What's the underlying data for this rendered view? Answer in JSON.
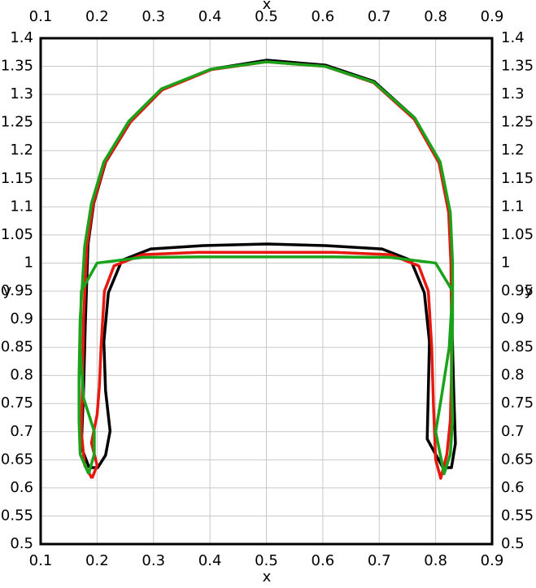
{
  "chart_data": {
    "type": "line",
    "xlabel": "x",
    "ylabel": "y",
    "xlim": [
      0.1,
      0.9
    ],
    "ylim": [
      0.5,
      1.4
    ],
    "xticks": [
      0.1,
      0.2,
      0.3,
      0.4,
      0.5,
      0.6,
      0.7,
      0.8,
      0.9
    ],
    "yticks": [
      0.5,
      0.55,
      0.6,
      0.65,
      0.7,
      0.75,
      0.8,
      0.85,
      0.9,
      0.95,
      1,
      1.05,
      1.1,
      1.15,
      1.2,
      1.25,
      1.3,
      1.35,
      1.4
    ],
    "grid": true,
    "series": [
      {
        "color": "#000000",
        "x": [
          0.186,
          0.172,
          0.176,
          0.179,
          0.184,
          0.194,
          0.215,
          0.259,
          0.316,
          0.403,
          0.501,
          0.605,
          0.691,
          0.763,
          0.806,
          0.825,
          0.829,
          0.829,
          0.832,
          0.835,
          0.828,
          0.813,
          0.785,
          0.787,
          0.789,
          0.78,
          0.756,
          0.705,
          0.605,
          0.501,
          0.388,
          0.295,
          0.244,
          0.22,
          0.212,
          0.215,
          0.223,
          0.215,
          0.201,
          0.186
        ],
        "values": [
          0.636,
          0.672,
          0.773,
          0.889,
          1.034,
          1.106,
          1.179,
          1.251,
          1.309,
          1.345,
          1.361,
          1.352,
          1.323,
          1.258,
          1.179,
          1.092,
          1.005,
          0.889,
          0.773,
          0.679,
          0.636,
          0.636,
          0.687,
          0.773,
          0.86,
          0.947,
          1.005,
          1.025,
          1.031,
          1.034,
          1.031,
          1.025,
          1.005,
          0.947,
          0.86,
          0.773,
          0.701,
          0.658,
          0.636,
          0.636
        ]
      },
      {
        "color": "#e8170f",
        "x": [
          0.191,
          0.178,
          0.172,
          0.174,
          0.176,
          0.182,
          0.193,
          0.214,
          0.258,
          0.315,
          0.402,
          0.5,
          0.604,
          0.69,
          0.762,
          0.806,
          0.823,
          0.827,
          0.828,
          0.828,
          0.826,
          0.82,
          0.809,
          0.8,
          0.796,
          0.793,
          0.787,
          0.77,
          0.72,
          0.62,
          0.5,
          0.38,
          0.28,
          0.23,
          0.213,
          0.207,
          0.204,
          0.2,
          0.19,
          0.2,
          0.191
        ],
        "values": [
          0.617,
          0.64,
          0.7,
          0.78,
          0.9,
          1.03,
          1.105,
          1.178,
          1.25,
          1.308,
          1.344,
          1.358,
          1.35,
          1.321,
          1.256,
          1.178,
          1.09,
          1.0,
          0.9,
          0.8,
          0.72,
          0.66,
          0.617,
          0.65,
          0.75,
          0.85,
          0.95,
          0.995,
          1.015,
          1.019,
          1.019,
          1.019,
          1.015,
          0.995,
          0.95,
          0.85,
          0.78,
          0.73,
          0.68,
          0.64,
          0.617
        ]
      },
      {
        "color": "#1aa31a",
        "x": [
          0.185,
          0.17,
          0.168,
          0.168,
          0.17,
          0.178,
          0.19,
          0.212,
          0.256,
          0.314,
          0.402,
          0.5,
          0.604,
          0.69,
          0.763,
          0.808,
          0.826,
          0.83,
          0.83,
          0.828,
          0.83,
          0.826,
          0.815,
          0.8,
          0.81,
          0.824,
          0.83,
          0.8,
          0.72,
          0.62,
          0.5,
          0.38,
          0.28,
          0.2,
          0.172,
          0.17,
          0.176,
          0.195,
          0.195,
          0.185
        ],
        "values": [
          0.625,
          0.66,
          0.72,
          0.8,
          0.9,
          1.03,
          1.106,
          1.18,
          1.252,
          1.31,
          1.345,
          1.358,
          1.35,
          1.322,
          1.258,
          1.18,
          1.09,
          1.0,
          0.9,
          0.8,
          0.72,
          0.66,
          0.625,
          0.7,
          0.76,
          0.85,
          0.95,
          1.0,
          1.01,
          1.011,
          1.011,
          1.011,
          1.01,
          1.0,
          0.95,
          0.85,
          0.76,
          0.7,
          0.66,
          0.625
        ]
      }
    ]
  }
}
